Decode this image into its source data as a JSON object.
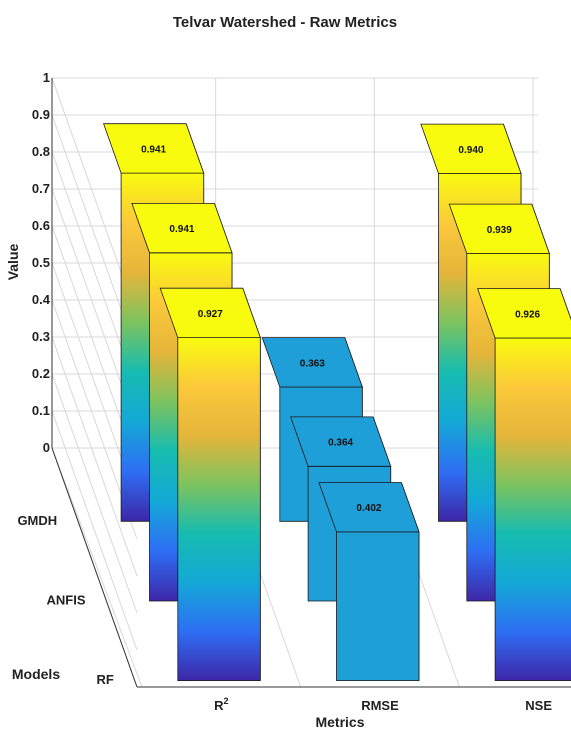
{
  "chart_data": {
    "type": "bar",
    "subtype": "3d-bar",
    "title": "Telvar Watershed - Raw Metrics",
    "xlabel": "Metrics",
    "ylabel": "Models",
    "zlabel": "Value",
    "categories": [
      "R2",
      "RMSE",
      "NSE"
    ],
    "category_labels": [
      {
        "base": "R",
        "sup": "2"
      },
      {
        "base": "RMSE",
        "sup": ""
      },
      {
        "base": "NSE",
        "sup": ""
      }
    ],
    "models": [
      "GMDH",
      "ANFIS",
      "RF"
    ],
    "series": [
      {
        "name": "GMDH",
        "values": [
          0.941,
          0.363,
          0.94
        ]
      },
      {
        "name": "ANFIS",
        "values": [
          0.941,
          0.364,
          0.939
        ]
      },
      {
        "name": "RF",
        "values": [
          0.927,
          0.402,
          0.926
        ]
      }
    ],
    "value_labels": [
      [
        "0.941",
        "0.363",
        "0.940"
      ],
      [
        "0.941",
        "0.364",
        "0.939"
      ],
      [
        "0.927",
        "0.402",
        "0.926"
      ]
    ],
    "zlim": [
      0,
      1
    ],
    "zticks": [
      "0",
      "0.1",
      "0.2",
      "0.3",
      "0.4",
      "0.5",
      "0.6",
      "0.7",
      "0.8",
      "0.9",
      "1"
    ],
    "grid": true,
    "colormap": "parula",
    "colormap_stops": [
      "#3e26a8",
      "#2e6ff4",
      "#14a8d6",
      "#16bcb0",
      "#7cc35f",
      "#e5b53a",
      "#fbc93a",
      "#f9fb0e"
    ],
    "rmse_fill_color": "#1f9fd8"
  }
}
